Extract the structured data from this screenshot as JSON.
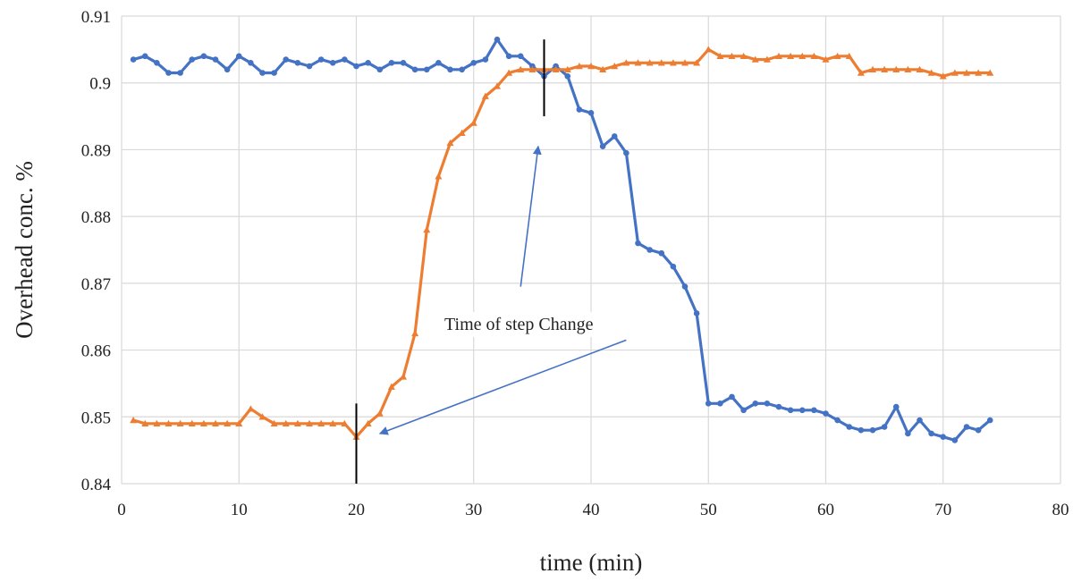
{
  "chart_data": {
    "type": "line",
    "title": "",
    "xlabel": "time  (min)",
    "ylabel": "Overhead conc. %",
    "xlim": [
      0,
      80
    ],
    "ylim": [
      0.84,
      0.91
    ],
    "x_ticks": [
      0,
      10,
      20,
      30,
      40,
      50,
      60,
      70,
      80
    ],
    "y_ticks": [
      0.84,
      0.85,
      0.86,
      0.87,
      0.88,
      0.89,
      0.9,
      0.91
    ],
    "x_tick_labels": [
      "0",
      "10",
      "20",
      "30",
      "40",
      "50",
      "60",
      "70",
      "80"
    ],
    "y_tick_labels": [
      "0.84",
      "0.85",
      "0.86",
      "0.87",
      "0.88",
      "0.89",
      "0.9",
      "0.91"
    ],
    "grid": true,
    "series": [
      {
        "color": "#4472c4",
        "marker": "circle",
        "x": [
          1,
          2,
          3,
          4,
          5,
          6,
          7,
          8,
          9,
          10,
          11,
          12,
          13,
          14,
          15,
          16,
          17,
          18,
          19,
          20,
          21,
          22,
          23,
          24,
          25,
          26,
          27,
          28,
          29,
          30,
          31,
          32,
          33,
          34,
          35,
          36,
          37,
          38,
          39,
          40,
          41,
          42,
          43,
          44,
          45,
          46,
          47,
          48,
          49,
          50,
          51,
          52,
          53,
          54,
          55,
          56,
          57,
          58,
          59,
          60,
          61,
          62,
          63,
          64,
          65,
          66,
          67,
          68,
          69,
          70,
          71,
          72,
          73,
          74
        ],
        "y": [
          0.9035,
          0.904,
          0.903,
          0.9015,
          0.9015,
          0.9035,
          0.904,
          0.9035,
          0.902,
          0.904,
          0.903,
          0.9015,
          0.9015,
          0.9035,
          0.903,
          0.9025,
          0.9035,
          0.903,
          0.9035,
          0.9025,
          0.903,
          0.902,
          0.903,
          0.903,
          0.902,
          0.902,
          0.903,
          0.902,
          0.902,
          0.903,
          0.9035,
          0.9065,
          0.904,
          0.904,
          0.9025,
          0.901,
          0.9025,
          0.901,
          0.896,
          0.8955,
          0.8905,
          0.892,
          0.8895,
          0.876,
          0.875,
          0.8745,
          0.8725,
          0.8695,
          0.8655,
          0.852,
          0.852,
          0.853,
          0.851,
          0.852,
          0.852,
          0.8515,
          0.851,
          0.851,
          0.851,
          0.8505,
          0.8495,
          0.8485,
          0.848,
          0.848,
          0.8485,
          0.8515,
          0.8475,
          0.8495,
          0.8475,
          0.847,
          0.8465,
          0.8485,
          0.848,
          0.8495
        ]
      },
      {
        "color": "#ed7d31",
        "marker": "triangle",
        "x": [
          1,
          2,
          3,
          4,
          5,
          6,
          7,
          8,
          9,
          10,
          11,
          12,
          13,
          14,
          15,
          16,
          17,
          18,
          19,
          20,
          21,
          22,
          23,
          24,
          25,
          26,
          27,
          28,
          29,
          30,
          31,
          32,
          33,
          34,
          35,
          36,
          37,
          38,
          39,
          40,
          41,
          42,
          43,
          44,
          45,
          46,
          47,
          48,
          49,
          50,
          51,
          52,
          53,
          54,
          55,
          56,
          57,
          58,
          59,
          60,
          61,
          62,
          63,
          64,
          65,
          66,
          67,
          68,
          69,
          70,
          71,
          72,
          73,
          74
        ],
        "y": [
          0.8495,
          0.849,
          0.849,
          0.849,
          0.849,
          0.849,
          0.849,
          0.849,
          0.849,
          0.849,
          0.8512,
          0.85,
          0.849,
          0.849,
          0.849,
          0.849,
          0.849,
          0.849,
          0.849,
          0.847,
          0.849,
          0.8505,
          0.8545,
          0.856,
          0.8625,
          0.878,
          0.886,
          0.891,
          0.8925,
          0.894,
          0.898,
          0.8995,
          0.9015,
          0.902,
          0.902,
          0.902,
          0.902,
          0.902,
          0.9025,
          0.9025,
          0.902,
          0.9025,
          0.903,
          0.903,
          0.903,
          0.903,
          0.903,
          0.903,
          0.903,
          0.905,
          0.904,
          0.904,
          0.904,
          0.9035,
          0.9035,
          0.904,
          0.904,
          0.904,
          0.904,
          0.9035,
          0.904,
          0.904,
          0.9015,
          0.902,
          0.902,
          0.902,
          0.902,
          0.902,
          0.9015,
          0.901,
          0.9015,
          0.9015,
          0.9015,
          0.9015
        ]
      }
    ],
    "annotations": [
      {
        "text": "Time of step Change",
        "vlines": [
          {
            "x": 20,
            "y0": 0.84,
            "y1": 0.852
          },
          {
            "x": 36,
            "y0": 0.895,
            "y1": 0.9065
          }
        ],
        "arrows": [
          {
            "from_x": 43,
            "from_y": 0.8615,
            "to_x": 22,
            "to_y": 0.8475
          },
          {
            "from_x": 34,
            "from_y": 0.8695,
            "to_x": 35.5,
            "to_y": 0.8905
          }
        ]
      }
    ]
  }
}
